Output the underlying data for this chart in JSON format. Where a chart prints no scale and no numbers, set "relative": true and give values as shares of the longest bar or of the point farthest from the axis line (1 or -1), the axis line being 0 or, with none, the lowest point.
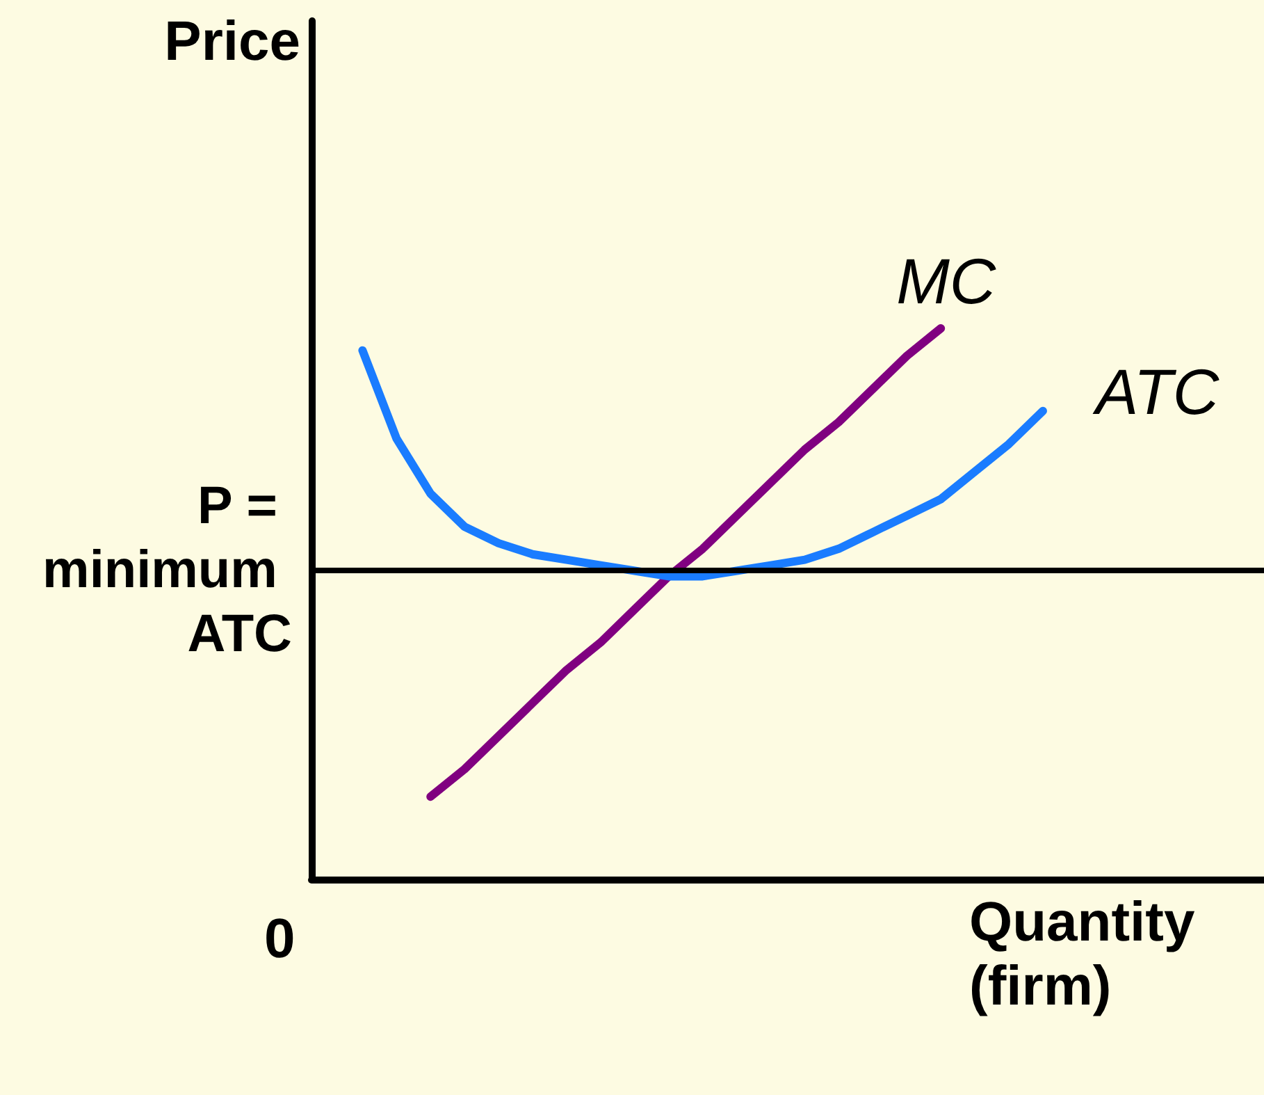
{
  "chart_data": {
    "type": "line",
    "relative": true,
    "xlabel": "Quantity (firm)",
    "ylabel": "Price",
    "annotations": [
      "0"
    ],
    "categories": [
      null,
      null,
      null,
      null,
      null,
      null,
      null,
      null,
      null,
      null,
      null,
      null,
      null,
      null,
      null,
      null,
      null,
      null,
      null,
      null,
      null,
      null,
      null,
      null,
      null,
      null,
      null,
      null
    ],
    "series": [
      {
        "name": "MC",
        "color": "#800080",
        "values": [
          null,
          null,
          null,
          0.15,
          0.2,
          0.26,
          0.32,
          0.38,
          0.43,
          0.49,
          0.55,
          0.6,
          0.66,
          0.72,
          0.78,
          0.83,
          0.89,
          0.95,
          1,
          null,
          null,
          null,
          null,
          null,
          null,
          null,
          null,
          null
        ]
      },
      {
        "name": "ATC",
        "color": "#1a7cff",
        "values": [
          null,
          0.96,
          0.8,
          0.7,
          0.64,
          0.61,
          0.59,
          0.58,
          0.57,
          0.56,
          0.55,
          0.55,
          0.56,
          0.57,
          0.58,
          0.6,
          0.63,
          0.66,
          0.69,
          0.74,
          0.79,
          0.85,
          null,
          null,
          null,
          null,
          null,
          null
        ]
      }
    ],
    "ref_lines": [
      {
        "axis": "y",
        "value": 0.56,
        "label": "P = minimum ATC",
        "color": "#000000"
      }
    ],
    "marker": "none",
    "line_style": "solid",
    "grid": false,
    "legend": false
  }
}
